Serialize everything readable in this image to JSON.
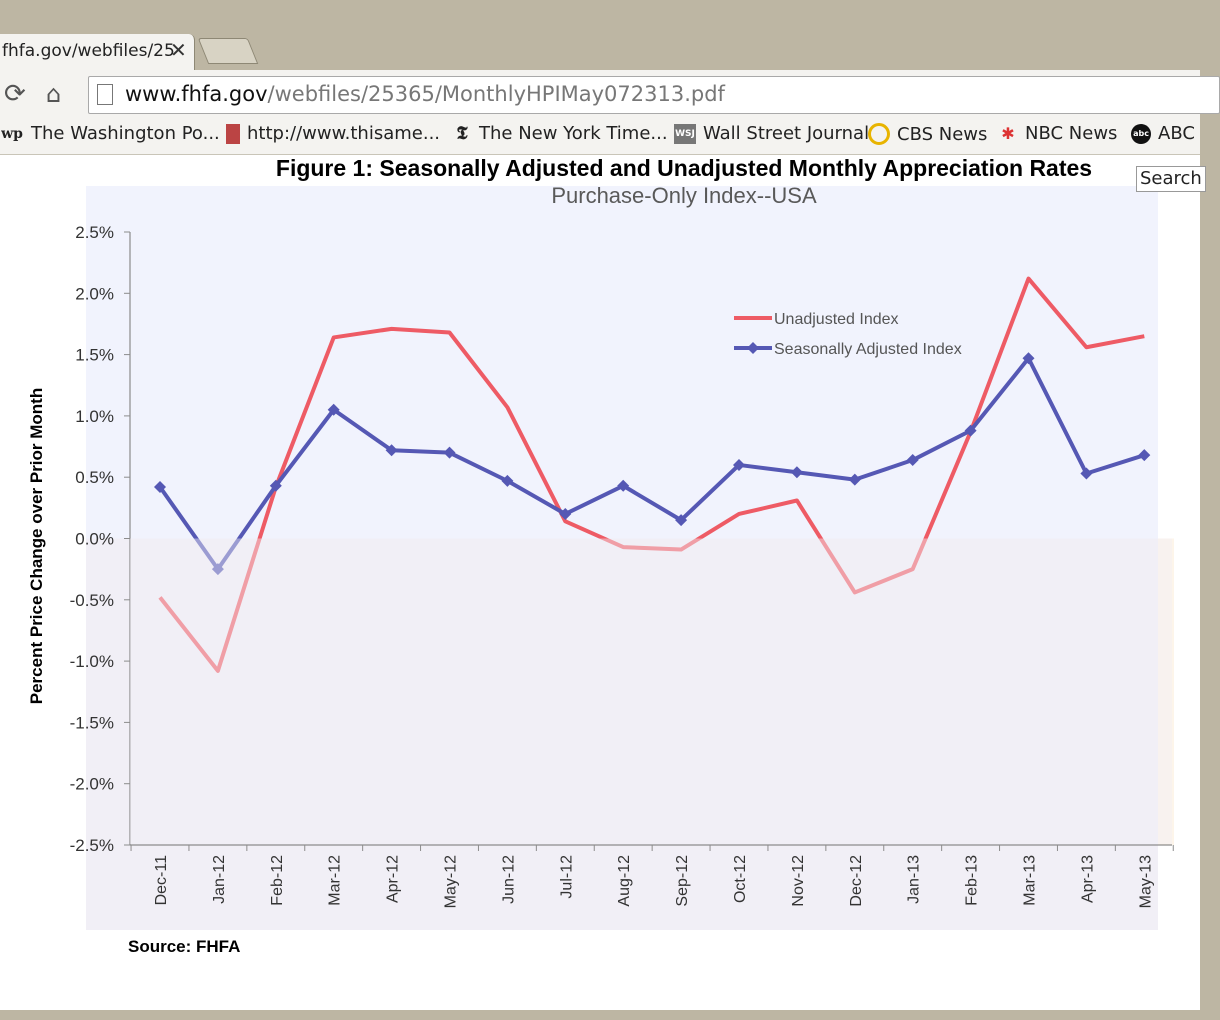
{
  "browser": {
    "tab_title": "fhfa.gov/webfiles/25",
    "url_host": "www.fhfa.gov",
    "url_path": "/webfiles/25365/MonthlyHPIMay072313.pdf",
    "bookmarks": [
      {
        "icon": "wp-icon",
        "label": "The Washington Po..."
      },
      {
        "icon": "magazine-icon",
        "label": "http://www.thisame..."
      },
      {
        "icon": "nyt-icon",
        "label": "The New York Time..."
      },
      {
        "icon": "wsj-icon",
        "label": "Wall Street Journal"
      },
      {
        "icon": "cbs-eye-icon",
        "label": "CBS News"
      },
      {
        "icon": "nbc-peacock-icon",
        "label": "NBC News"
      },
      {
        "icon": "abc-icon",
        "label": "ABC"
      }
    ],
    "search_placeholder": "Search"
  },
  "document": {
    "source_text": "Source: FHFA"
  },
  "chart_data": {
    "type": "line",
    "title": "Figure 1: Seasonally Adjusted and Unadjusted Monthly Appreciation Rates",
    "subtitle": "Purchase-Only Index--USA",
    "ylabel": "Percent Price Change over Prior Month",
    "xlabel": "",
    "categories": [
      "Dec-11",
      "Jan-12",
      "Feb-12",
      "Mar-12",
      "Apr-12",
      "May-12",
      "Jun-12",
      "Jul-12",
      "Aug-12",
      "Sep-12",
      "Oct-12",
      "Nov-12",
      "Dec-12",
      "Jan-13",
      "Feb-13",
      "Mar-13",
      "Apr-13",
      "May-13"
    ],
    "ylim": [
      -2.5,
      2.5
    ],
    "yticks": [
      2.5,
      2.0,
      1.5,
      1.0,
      0.5,
      0.0,
      -0.5,
      -1.0,
      -1.5,
      -2.0,
      -2.5
    ],
    "ytick_labels": [
      "2.5%",
      "2.0%",
      "1.5%",
      "1.0%",
      "0.5%",
      "0.0%",
      "-0.5%",
      "-1.0%",
      "-1.5%",
      "-2.0%",
      "-2.5%"
    ],
    "legend_position": "top-right",
    "grid": false,
    "series": [
      {
        "name": "Unadjusted Index",
        "color": "#ee5b65",
        "marker": "none",
        "values": [
          -0.48,
          -1.08,
          0.42,
          1.64,
          1.71,
          1.68,
          1.07,
          0.14,
          -0.07,
          -0.09,
          0.2,
          0.31,
          -0.44,
          -0.25,
          0.87,
          2.12,
          1.56,
          1.65
        ]
      },
      {
        "name": "Seasonally Adjusted Index",
        "color": "#5558b4",
        "marker": "diamond",
        "values": [
          0.42,
          -0.25,
          0.43,
          1.05,
          0.72,
          0.7,
          0.47,
          0.2,
          0.43,
          0.15,
          0.6,
          0.54,
          0.48,
          0.64,
          0.88,
          1.47,
          0.53,
          0.68
        ]
      }
    ]
  }
}
